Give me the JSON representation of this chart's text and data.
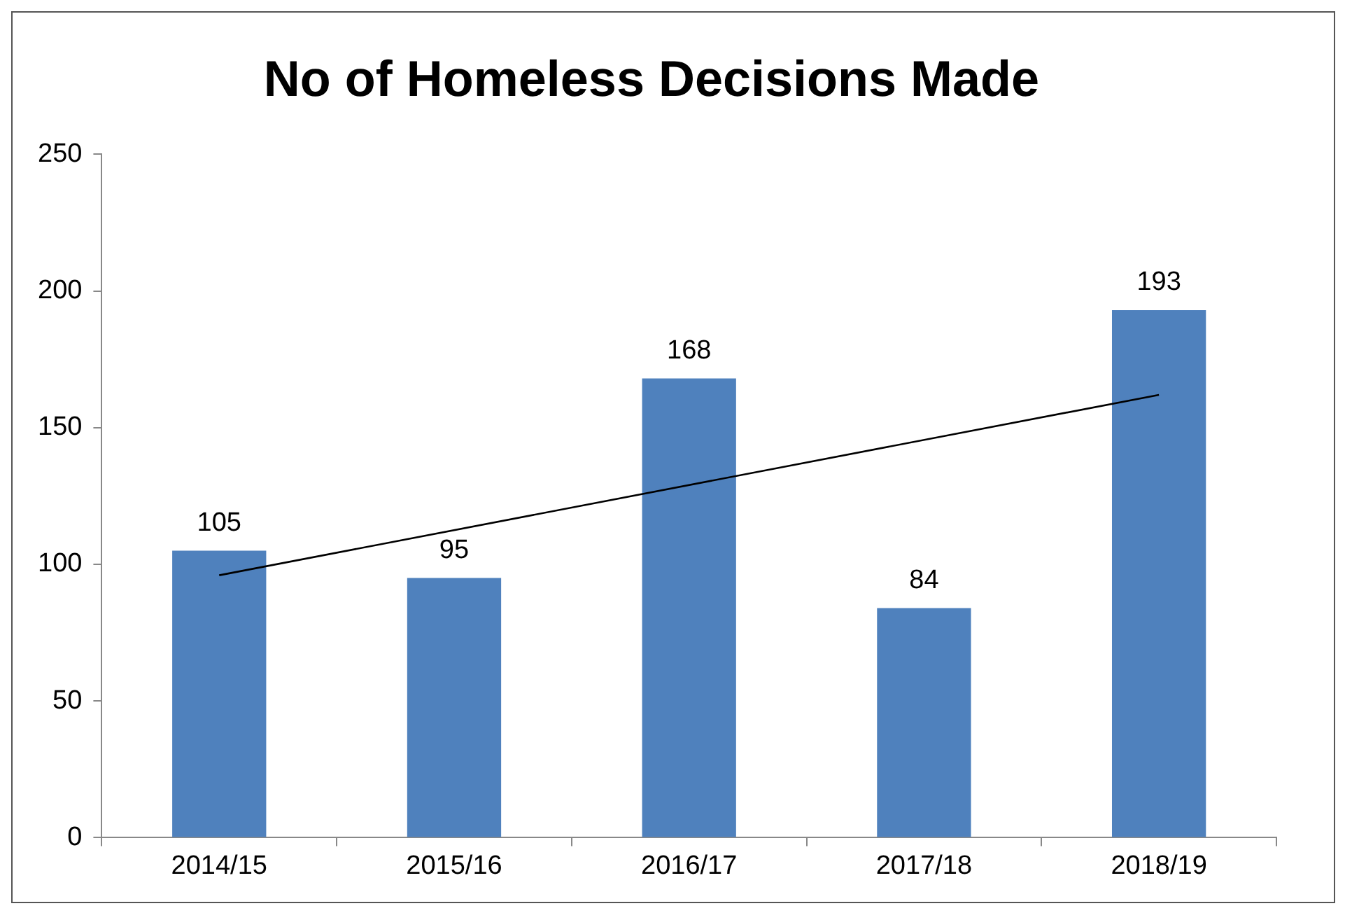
{
  "chart_data": {
    "type": "bar",
    "title": "No of Homeless Decisions Made",
    "categories": [
      "2014/15",
      "2015/16",
      "2016/17",
      "2017/18",
      "2018/19"
    ],
    "series": [
      {
        "color": "#4f81bd",
        "values": [
          105,
          95,
          168,
          84,
          193
        ],
        "value_labels": [
          "105",
          "95",
          "168",
          "84",
          "193"
        ]
      },
      {
        "type": "line",
        "color": "#000000",
        "x": [
          "2014/15",
          "2018/19"
        ],
        "values": [
          96,
          162
        ],
        "marker": "none"
      }
    ],
    "ylim": [
      0,
      250
    ],
    "yticks": [
      0,
      50,
      100,
      150,
      200,
      250
    ],
    "grid": false,
    "legend": false
  }
}
